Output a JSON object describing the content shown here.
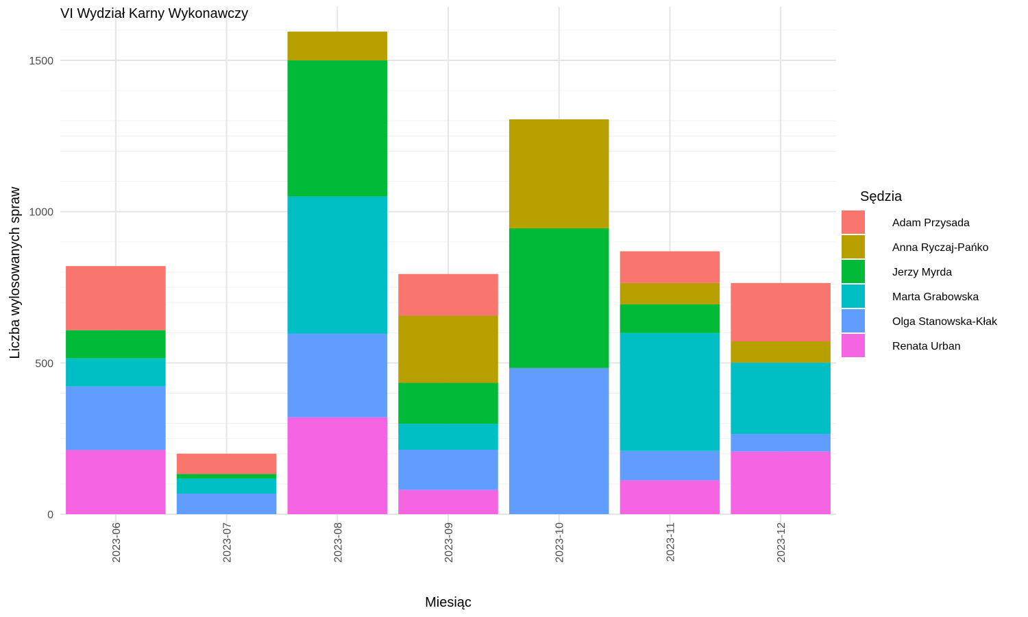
{
  "chart_data": {
    "type": "bar",
    "stacked": true,
    "title": "VI Wydział Karny Wykonawczy",
    "xlabel": "Miesiąc",
    "ylabel": "Liczba wylosowanych spraw",
    "ylim": [
      0,
      1600
    ],
    "yticks": [
      0,
      500,
      1000,
      1500
    ],
    "grid": true,
    "legend_title": "Sędzia",
    "legend_position": "right",
    "categories": [
      "2023-06",
      "2023-07",
      "2023-08",
      "2023-09",
      "2023-10",
      "2023-11",
      "2023-12"
    ],
    "series": [
      {
        "name": "Renata Urban",
        "color": "#F564E3",
        "values": [
          212,
          0,
          320,
          80,
          0,
          112,
          207
        ]
      },
      {
        "name": "Olga Stanowska-Kłak",
        "color": "#619CFF",
        "values": [
          210,
          68,
          277,
          133,
          483,
          97,
          58
        ]
      },
      {
        "name": "Marta Grabowska",
        "color": "#00BFC4",
        "values": [
          93,
          50,
          453,
          86,
          0,
          390,
          236
        ]
      },
      {
        "name": "Jerzy Myrda",
        "color": "#00BA38",
        "values": [
          93,
          15,
          450,
          135,
          462,
          95,
          0
        ]
      },
      {
        "name": "Anna Ryczaj-Pańko",
        "color": "#B79F00",
        "values": [
          0,
          0,
          95,
          222,
          360,
          70,
          70
        ]
      },
      {
        "name": "Adam Przysada",
        "color": "#F8766D",
        "values": [
          212,
          67,
          0,
          138,
          0,
          105,
          193
        ]
      }
    ],
    "legend_order": [
      "Adam Przysada",
      "Anna Ryczaj-Pańko",
      "Jerzy Myrda",
      "Marta Grabowska",
      "Olga Stanowska-Kłak",
      "Renata Urban"
    ]
  }
}
